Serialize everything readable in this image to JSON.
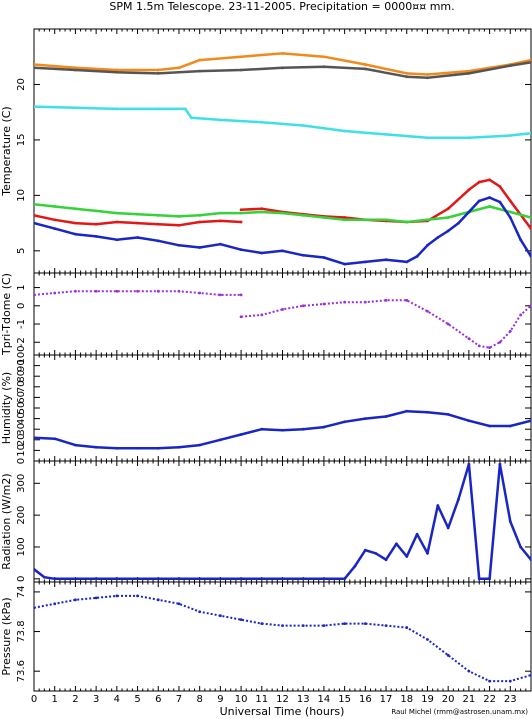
{
  "title": "SPM 1.5m Telescope. 23-11-2005. Precipitation = 0000¤¤ mm.",
  "xlabel": "Universal Time (hours)",
  "credit": "Raul Michel (rmm@astrosen.unam.mx)",
  "x_ticks": [
    "0",
    "1",
    "2",
    "3",
    "4",
    "5",
    "6",
    "7",
    "8",
    "9",
    "10",
    "11",
    "12",
    "13",
    "14",
    "15",
    "16",
    "17",
    "18",
    "19",
    "20",
    "21",
    "22",
    "23"
  ],
  "colors": {
    "orange": "#f08a1e",
    "gray": "#555555",
    "cyan": "#3ee0e6",
    "red": "#e01818",
    "green": "#35d23a",
    "blue": "#1a26c4",
    "purple": "#9a30d8"
  },
  "chart_data": [
    {
      "type": "line",
      "ylabel": "Temperature (C)",
      "ylim": [
        3,
        25
      ],
      "yticks": [
        "5",
        "10",
        "15",
        "20"
      ],
      "xlim": [
        0,
        24
      ],
      "series": [
        {
          "color": "orange",
          "x": [
            0,
            2,
            4,
            6,
            7,
            8,
            10,
            12,
            14,
            16,
            18,
            19,
            21,
            23,
            24
          ],
          "y": [
            21.8,
            21.5,
            21.3,
            21.3,
            21.5,
            22.2,
            22.5,
            22.8,
            22.5,
            21.8,
            21.0,
            20.9,
            21.2,
            21.8,
            22.2
          ]
        },
        {
          "color": "gray",
          "x": [
            0,
            2,
            4,
            6,
            8,
            10,
            12,
            14,
            16,
            18,
            19,
            21,
            23,
            24
          ],
          "y": [
            21.5,
            21.3,
            21.1,
            21.0,
            21.2,
            21.3,
            21.5,
            21.6,
            21.4,
            20.7,
            20.6,
            21.0,
            21.7,
            22.0
          ]
        },
        {
          "color": "cyan",
          "x": [
            0,
            2,
            4,
            6,
            7.3,
            7.6,
            9,
            11,
            13,
            15,
            17,
            19,
            21,
            23,
            24
          ],
          "y": [
            18.0,
            17.9,
            17.8,
            17.8,
            17.8,
            17.0,
            16.8,
            16.6,
            16.3,
            15.8,
            15.5,
            15.2,
            15.2,
            15.4,
            15.6
          ]
        },
        {
          "color": "red",
          "x": [
            0,
            1,
            2,
            3,
            4,
            5,
            6,
            7,
            8,
            9,
            10
          ],
          "y": [
            8.2,
            7.8,
            7.5,
            7.4,
            7.6,
            7.5,
            7.4,
            7.3,
            7.6,
            7.7,
            7.6
          ]
        },
        {
          "color": "red",
          "x": [
            10,
            11,
            12,
            13,
            14,
            15,
            16,
            17,
            18,
            19,
            20,
            21,
            21.5,
            22,
            22.5,
            23,
            24
          ],
          "y": [
            8.7,
            8.8,
            8.5,
            8.3,
            8.1,
            8.0,
            7.8,
            7.7,
            7.6,
            7.7,
            8.8,
            10.5,
            11.2,
            11.4,
            10.8,
            9.5,
            7.0
          ]
        },
        {
          "color": "green",
          "x": [
            0,
            1,
            2,
            3,
            4,
            5,
            6,
            7,
            8,
            9,
            10,
            11,
            12,
            13,
            14,
            15,
            16,
            17,
            18,
            19,
            20,
            21,
            22,
            23,
            24
          ],
          "y": [
            9.2,
            9.0,
            8.8,
            8.6,
            8.4,
            8.3,
            8.2,
            8.1,
            8.2,
            8.4,
            8.4,
            8.5,
            8.4,
            8.2,
            8.0,
            7.8,
            7.8,
            7.8,
            7.6,
            7.8,
            8.0,
            8.5,
            9.0,
            8.5,
            8.0
          ]
        },
        {
          "color": "blue",
          "x": [
            0,
            1,
            2,
            3,
            4,
            5,
            6,
            7,
            8,
            9,
            10,
            11,
            12,
            13,
            14,
            15,
            16,
            17,
            18,
            18.5,
            19,
            19.5,
            20,
            20.5,
            21,
            21.5,
            22,
            22.5,
            23,
            23.5,
            24
          ],
          "y": [
            7.5,
            7.0,
            6.5,
            6.3,
            6.0,
            6.2,
            5.9,
            5.5,
            5.3,
            5.6,
            5.1,
            4.8,
            5.0,
            4.6,
            4.4,
            3.8,
            4.0,
            4.2,
            4.0,
            4.5,
            5.5,
            6.2,
            6.8,
            7.5,
            8.5,
            9.5,
            9.8,
            9.4,
            8.0,
            6.0,
            4.5
          ]
        }
      ]
    },
    {
      "type": "scatter",
      "ylabel": "Tpri-Tdome (C)",
      "ylim": [
        -2.7,
        1.8
      ],
      "yticks": [
        "-2",
        "-1",
        "0",
        "1"
      ],
      "xlim": [
        0,
        24
      ],
      "series": [
        {
          "color": "purple",
          "x": [
            0,
            1,
            2,
            3,
            4,
            5,
            6,
            7,
            8,
            9,
            10
          ],
          "y": [
            0.6,
            0.7,
            0.8,
            0.8,
            0.8,
            0.8,
            0.8,
            0.8,
            0.7,
            0.6,
            0.6
          ]
        },
        {
          "color": "purple",
          "x": [
            10,
            11,
            12,
            13,
            14,
            15,
            16,
            17,
            18,
            19,
            20,
            21,
            21.5,
            22,
            22.5,
            23,
            23.5,
            24
          ],
          "y": [
            -0.6,
            -0.5,
            -0.2,
            0.0,
            0.1,
            0.2,
            0.2,
            0.3,
            0.3,
            -0.3,
            -1.0,
            -1.8,
            -2.2,
            -2.3,
            -2.0,
            -1.4,
            -0.5,
            0.0
          ]
        }
      ]
    },
    {
      "type": "line",
      "ylabel": "Humidity (%)",
      "ylim": [
        0,
        100
      ],
      "yticks": [
        "0",
        "10",
        "20",
        "30",
        "40",
        "50",
        "60",
        "70",
        "80",
        "90",
        "100"
      ],
      "xlim": [
        0,
        24
      ],
      "series": [
        {
          "color": "blue",
          "x": [
            0,
            1,
            2,
            3,
            4,
            5,
            6,
            7,
            8,
            9,
            10,
            11,
            12,
            13,
            14,
            15,
            16,
            17,
            18,
            19,
            20,
            21,
            22,
            23,
            24
          ],
          "y": [
            22,
            21,
            15,
            13,
            12,
            12,
            12,
            13,
            15,
            20,
            25,
            30,
            29,
            30,
            32,
            37,
            40,
            42,
            47,
            46,
            44,
            38,
            33,
            33,
            38
          ]
        }
      ]
    },
    {
      "type": "line",
      "ylabel": "Radiation (W/m2)",
      "ylim": [
        -10,
        370
      ],
      "yticks": [
        "0",
        "100",
        "200",
        "300"
      ],
      "xlim": [
        0,
        24
      ],
      "series": [
        {
          "color": "blue",
          "x": [
            0,
            0.5,
            1,
            2,
            4,
            6,
            8,
            10,
            12,
            14,
            15,
            15.5,
            16,
            16.5,
            17,
            17.5,
            18,
            18.5,
            19,
            19.5,
            20,
            20.5,
            21,
            21.5,
            22,
            22.5,
            23,
            23.5,
            24
          ],
          "y": [
            30,
            5,
            0,
            0,
            0,
            0,
            0,
            0,
            0,
            0,
            0,
            40,
            90,
            80,
            60,
            110,
            70,
            140,
            80,
            230,
            160,
            250,
            360,
            0,
            0,
            360,
            180,
            100,
            60
          ]
        }
      ]
    },
    {
      "type": "scatter",
      "ylabel": "Pressure (kPa)",
      "ylim": [
        73.5,
        74.05
      ],
      "yticks": [
        "73.6",
        "73.8",
        "74"
      ],
      "xlim": [
        0,
        24
      ],
      "series": [
        {
          "color": "blue",
          "x": [
            0,
            1,
            2,
            3,
            4,
            5,
            6,
            7,
            8,
            9,
            10,
            11,
            12,
            13,
            14,
            15,
            16,
            17,
            18,
            19,
            20,
            21,
            22,
            23,
            24
          ],
          "y": [
            73.92,
            73.94,
            73.96,
            73.97,
            73.98,
            73.98,
            73.96,
            73.94,
            73.9,
            73.88,
            73.86,
            73.84,
            73.83,
            73.83,
            73.83,
            73.84,
            73.84,
            73.83,
            73.82,
            73.76,
            73.68,
            73.6,
            73.55,
            73.55,
            73.58
          ]
        }
      ]
    }
  ]
}
